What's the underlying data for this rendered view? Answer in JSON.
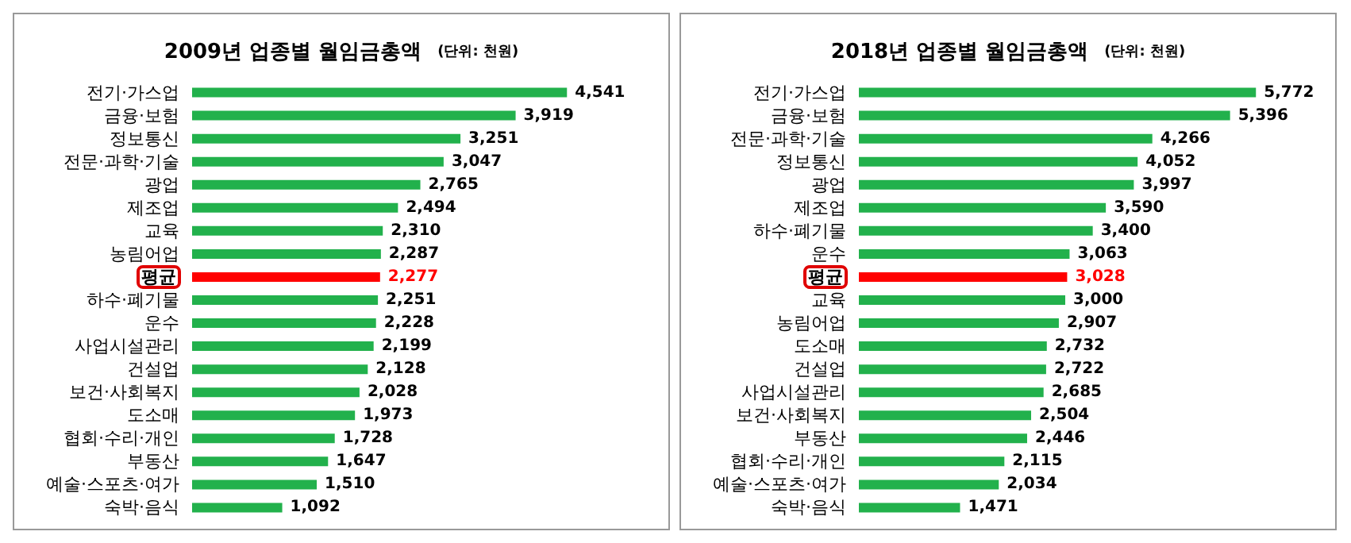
{
  "chart_data": [
    {
      "type": "bar",
      "orientation": "horizontal",
      "title": "2009년 업종별 월임금총액",
      "subtitle": "(단위: 천원)",
      "tick_labels": "y",
      "categories": [
        "전기·가스업",
        "금융·보험",
        "정보통신",
        "전문·과학·기술",
        "광업",
        "제조업",
        "교육",
        "농림어업",
        "평균",
        "하수·폐기물",
        "운수",
        "사업시설관리",
        "건설업",
        "보건·사회복지",
        "도소매",
        "협회·수리·개인",
        "부동산",
        "예술·스포츠·여가",
        "숙박·음식"
      ],
      "values": [
        4541,
        3919,
        3251,
        3047,
        2765,
        2494,
        2310,
        2287,
        2277,
        2251,
        2228,
        2199,
        2128,
        2028,
        1973,
        1728,
        1647,
        1510,
        1092
      ],
      "value_labels": [
        "4,541",
        "3,919",
        "3,251",
        "3,047",
        "2,765",
        "2,494",
        "2,310",
        "2,287",
        "2,277",
        "2,251",
        "2,228",
        "2,199",
        "2,128",
        "2,028",
        "1,973",
        "1,728",
        "1,647",
        "1,510",
        "1,092"
      ],
      "colors": [
        "#22b14c",
        "#22b14c",
        "#22b14c",
        "#22b14c",
        "#22b14c",
        "#22b14c",
        "#22b14c",
        "#22b14c",
        "#ff0000",
        "#22b14c",
        "#22b14c",
        "#22b14c",
        "#22b14c",
        "#22b14c",
        "#22b14c",
        "#22b14c",
        "#22b14c",
        "#22b14c",
        "#22b14c"
      ]
    },
    {
      "type": "bar",
      "orientation": "horizontal",
      "title": "2018년 업종별 월임금총액",
      "subtitle": "(단위: 천원)",
      "tick_labels": "y",
      "categories": [
        "전기·가스업",
        "금융·보험",
        "전문·과학·기술",
        "정보통신",
        "광업",
        "제조업",
        "하수·폐기물",
        "운수",
        "평균",
        "교육",
        "농림어업",
        "도소매",
        "건설업",
        "사업시설관리",
        "보건·사회복지",
        "부동산",
        "협회·수리·개인",
        "예술·스포츠·여가",
        "숙박·음식"
      ],
      "values": [
        5772,
        5396,
        4266,
        4052,
        3997,
        3590,
        3400,
        3063,
        3028,
        3000,
        2907,
        2732,
        2722,
        2685,
        2504,
        2446,
        2115,
        2034,
        1471
      ],
      "value_labels": [
        "5,772",
        "5,396",
        "4,266",
        "4,052",
        "3,997",
        "3,590",
        "3,400",
        "3,063",
        "3,028",
        "3,000",
        "2,907",
        "2,732",
        "2,722",
        "2,685",
        "2,504",
        "2,446",
        "2,115",
        "2,034",
        "1,471"
      ],
      "colors": [
        "#22b14c",
        "#22b14c",
        "#22b14c",
        "#22b14c",
        "#22b14c",
        "#22b14c",
        "#22b14c",
        "#22b14c",
        "#ff0000",
        "#22b14c",
        "#22b14c",
        "#22b14c",
        "#22b14c",
        "#22b14c",
        "#22b14c",
        "#22b14c",
        "#22b14c",
        "#22b14c",
        "#22b14c"
      ]
    }
  ]
}
